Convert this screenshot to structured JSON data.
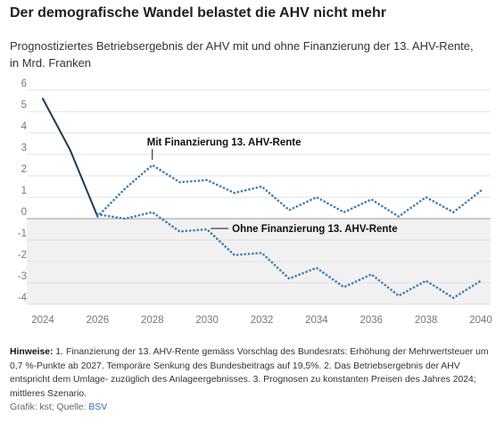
{
  "header": {
    "title": "Der demografische Wandel belastet die AHV nicht mehr",
    "subtitle_line1": "Prognostiziertes Betriebsergebnis der AHV mit und ohne Finanzierung der 13. AHV-Rente,",
    "subtitle_line2": "in Mrd. Franken"
  },
  "chart_data": {
    "type": "line",
    "title": "Der demografische Wandel belastet die AHV nicht mehr",
    "subtitle": "Prognostiziertes Betriebsergebnis der AHV mit und ohne Finanzierung der 13. AHV-Rente, in Mrd. Franken",
    "xlabel": "",
    "ylabel": "",
    "xlim": [
      2024,
      2040
    ],
    "ylim": [
      -4,
      6
    ],
    "x_ticks": [
      "2024",
      "2026",
      "2028",
      "2030",
      "2032",
      "2034",
      "2036",
      "2038",
      "2040"
    ],
    "y_ticks": [
      "6",
      "5",
      "4",
      "3",
      "2",
      "1",
      "0",
      "-1",
      "-2",
      "-3",
      "-4"
    ],
    "grid": "horizontal",
    "shaded_negative_area": true,
    "series": [
      {
        "key": "historical",
        "style": "solid",
        "color": "#1d3a52",
        "x": [
          2024,
          2025,
          2026
        ],
        "values": [
          5.6,
          3.2,
          0.1
        ]
      },
      {
        "key": "with",
        "name": "Mit Finanzierung 13. AHV-Rente",
        "style": "dotted",
        "color": "#3a7fb0",
        "x": [
          2026,
          2027,
          2028,
          2029,
          2030,
          2031,
          2032,
          2033,
          2034,
          2035,
          2036,
          2037,
          2038,
          2039,
          2040
        ],
        "values": [
          0.1,
          1.4,
          2.5,
          1.7,
          1.8,
          1.2,
          1.5,
          0.4,
          1.0,
          0.3,
          0.9,
          0.1,
          1.0,
          0.3,
          1.3
        ]
      },
      {
        "key": "without",
        "name": "Ohne Finanzierung 13. AHV-Rente",
        "style": "dotted",
        "color": "#3a7fb0",
        "x": [
          2026,
          2027,
          2028,
          2029,
          2030,
          2031,
          2032,
          2033,
          2034,
          2035,
          2036,
          2037,
          2038,
          2039,
          2040
        ],
        "values": [
          0.2,
          0.0,
          0.3,
          -0.6,
          -0.5,
          -1.7,
          -1.6,
          -2.8,
          -2.3,
          -3.2,
          -2.6,
          -3.6,
          -2.9,
          -3.7,
          -2.9
        ]
      }
    ],
    "annotations": [
      {
        "key": "with",
        "text": "Mit Finanzierung 13. AHV-Rente"
      },
      {
        "key": "without",
        "text": "Ohne Finanzierung 13. AHV-Rente"
      }
    ]
  },
  "notes": {
    "label": "Hinweise:",
    "text": " 1. Finanzierung der 13. AHV-Rente gemäss Vorschlag des Bundesrats: Erhöhung der Mehrwertsteuer um 0,7 %-Punkte ab 2027. Temporäre Senkung des Bundesbeitrags auf 19,5%. 2. Das Betriebsergebnis der AHV entspricht dem Umlage- zuzüglich des Anlageergebnisses. 3. Prognosen zu konstanten Preisen des Jahres 2024; mittleres Szenario."
  },
  "source": {
    "prefix": "Grafik: kst; Quelle: ",
    "link": "BSV"
  }
}
